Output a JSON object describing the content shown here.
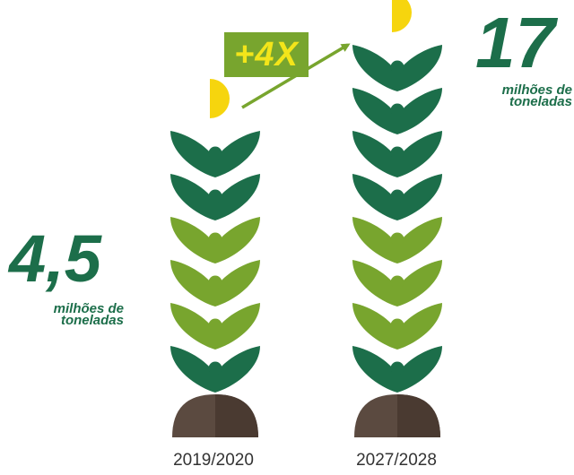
{
  "chart_data": {
    "type": "bar",
    "categories": [
      "2019/2020",
      "2027/2028"
    ],
    "values": [
      4.5,
      17
    ],
    "value_labels": [
      "4,5",
      "17"
    ],
    "unit_label": "milhões de toneladas",
    "growth_label": "+4X"
  },
  "colors": {
    "dark_green": "#1c6e4a",
    "light_green": "#78a52e",
    "grain_yellow": "#f6d50e",
    "soil_brown": "#5b4a40",
    "badge_text": "#f3e51a"
  },
  "plants": [
    {
      "leaf_colors": [
        "dark",
        "dark",
        "light",
        "light",
        "light",
        "dark"
      ]
    },
    {
      "leaf_colors": [
        "dark",
        "dark",
        "dark",
        "dark",
        "light",
        "light",
        "light",
        "dark"
      ]
    }
  ]
}
